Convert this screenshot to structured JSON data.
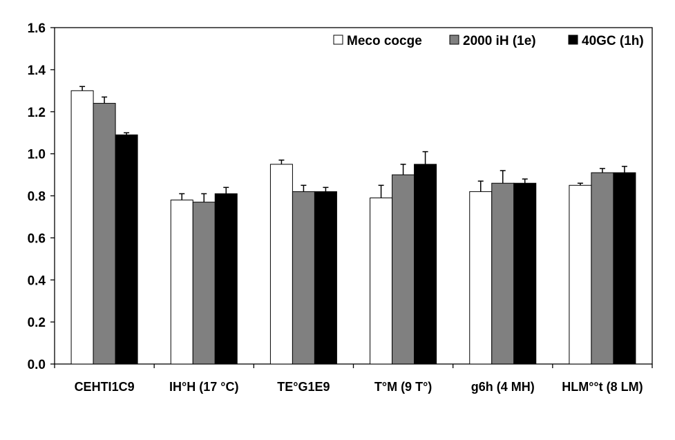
{
  "chart_data": {
    "type": "bar",
    "title": "",
    "xlabel": "",
    "ylabel": "",
    "ylim": [
      0,
      1.6
    ],
    "yticks": [
      "0.0",
      "0.2",
      "0.4",
      "0.6",
      "0.8",
      "1.0",
      "1.2",
      "1.4",
      "1.6"
    ],
    "grid": false,
    "legend_position": "top-right",
    "categories": [
      "CEHTI1C9",
      "IH°H (17 °C)",
      "TE°G1E9",
      "T°M (9 T°)",
      "g6h (4 MH)",
      "HLM°°t (8 LM)"
    ],
    "series": [
      {
        "name": "Meco cocge",
        "color": "#ffffff",
        "values": [
          1.3,
          0.78,
          0.95,
          0.79,
          0.82,
          0.85
        ],
        "errors": [
          0.02,
          0.03,
          0.02,
          0.06,
          0.05,
          0.01
        ]
      },
      {
        "name": "2000 iH (1e)",
        "color": "#808080",
        "values": [
          1.24,
          0.77,
          0.82,
          0.9,
          0.86,
          0.91
        ],
        "errors": [
          0.03,
          0.04,
          0.03,
          0.05,
          0.06,
          0.02
        ]
      },
      {
        "name": "40GC (1h)",
        "color": "#000000",
        "values": [
          1.09,
          0.81,
          0.82,
          0.95,
          0.86,
          0.91
        ],
        "errors": [
          0.01,
          0.03,
          0.02,
          0.06,
          0.02,
          0.03
        ]
      }
    ]
  }
}
